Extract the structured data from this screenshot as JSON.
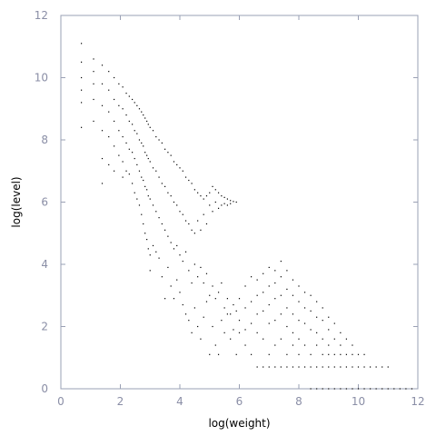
{
  "chart_data": {
    "type": "scatter",
    "title": "",
    "xlabel": "log(weight)",
    "ylabel": "log(level)",
    "xlim": [
      0,
      12
    ],
    "ylim": [
      0,
      12
    ],
    "xticks": [
      "0",
      "2",
      "4",
      "6",
      "8",
      "10",
      "12"
    ],
    "yticks": [
      "0",
      "2",
      "4",
      "6",
      "8",
      "10",
      "12"
    ],
    "grid": false,
    "legend": "none",
    "marker_color": "#000000",
    "axis_color": "#9aa0b4",
    "tick_label_color": "#8a8ea6",
    "series": [
      {
        "values_note_free": true,
        "points": [
          [
            0.69,
            11.1
          ],
          [
            0.69,
            10.5
          ],
          [
            0.69,
            10.0
          ],
          [
            0.69,
            9.6
          ],
          [
            0.69,
            9.2
          ],
          [
            0.69,
            8.4
          ],
          [
            1.1,
            10.6
          ],
          [
            1.1,
            10.2
          ],
          [
            1.1,
            9.8
          ],
          [
            1.1,
            9.3
          ],
          [
            1.1,
            8.6
          ],
          [
            1.39,
            10.4
          ],
          [
            1.39,
            9.8
          ],
          [
            1.39,
            9.1
          ],
          [
            1.39,
            8.3
          ],
          [
            1.39,
            7.4
          ],
          [
            1.39,
            6.6
          ],
          [
            1.61,
            10.2
          ],
          [
            1.61,
            9.6
          ],
          [
            1.61,
            8.9
          ],
          [
            1.61,
            8.1
          ],
          [
            1.61,
            7.2
          ],
          [
            1.79,
            10.0
          ],
          [
            1.79,
            9.3
          ],
          [
            1.79,
            8.6
          ],
          [
            1.79,
            7.8
          ],
          [
            1.79,
            7.0
          ],
          [
            1.95,
            9.8
          ],
          [
            1.95,
            9.1
          ],
          [
            1.95,
            8.3
          ],
          [
            1.95,
            7.5
          ],
          [
            2.08,
            9.7
          ],
          [
            2.08,
            9.0
          ],
          [
            2.08,
            8.1
          ],
          [
            2.08,
            7.3
          ],
          [
            2.08,
            6.8
          ],
          [
            2.2,
            9.5
          ],
          [
            2.2,
            8.8
          ],
          [
            2.2,
            7.9
          ],
          [
            2.2,
            7.0
          ],
          [
            2.3,
            9.4
          ],
          [
            2.3,
            8.6
          ],
          [
            2.3,
            7.7
          ],
          [
            2.3,
            6.9
          ],
          [
            2.4,
            9.3
          ],
          [
            2.4,
            8.5
          ],
          [
            2.4,
            7.6
          ],
          [
            2.4,
            6.6
          ],
          [
            2.48,
            9.2
          ],
          [
            2.48,
            8.3
          ],
          [
            2.48,
            7.4
          ],
          [
            2.48,
            6.3
          ],
          [
            2.56,
            9.1
          ],
          [
            2.56,
            8.2
          ],
          [
            2.56,
            7.2
          ],
          [
            2.56,
            6.1
          ],
          [
            2.64,
            9.0
          ],
          [
            2.64,
            8.0
          ],
          [
            2.64,
            7.0
          ],
          [
            2.64,
            5.9
          ],
          [
            2.71,
            8.9
          ],
          [
            2.71,
            7.9
          ],
          [
            2.71,
            6.8
          ],
          [
            2.71,
            5.6
          ],
          [
            2.77,
            8.8
          ],
          [
            2.77,
            7.8
          ],
          [
            2.77,
            6.7
          ],
          [
            2.77,
            5.3
          ],
          [
            2.83,
            8.7
          ],
          [
            2.83,
            7.6
          ],
          [
            2.83,
            6.5
          ],
          [
            2.83,
            5.0
          ],
          [
            2.89,
            8.6
          ],
          [
            2.89,
            7.5
          ],
          [
            2.89,
            6.4
          ],
          [
            2.89,
            4.8
          ],
          [
            2.94,
            8.5
          ],
          [
            2.94,
            7.4
          ],
          [
            2.94,
            6.2
          ],
          [
            2.94,
            4.5
          ],
          [
            3.0,
            8.4
          ],
          [
            3.0,
            7.3
          ],
          [
            3.0,
            6.1
          ],
          [
            3.0,
            4.3
          ],
          [
            3.0,
            3.8
          ],
          [
            3.1,
            8.3
          ],
          [
            3.1,
            7.1
          ],
          [
            3.1,
            5.9
          ],
          [
            3.1,
            4.6
          ],
          [
            3.2,
            8.1
          ],
          [
            3.2,
            7.0
          ],
          [
            3.2,
            5.7
          ],
          [
            3.2,
            4.4
          ],
          [
            3.3,
            8.0
          ],
          [
            3.3,
            6.8
          ],
          [
            3.3,
            5.5
          ],
          [
            3.3,
            4.2
          ],
          [
            3.4,
            7.9
          ],
          [
            3.4,
            6.6
          ],
          [
            3.4,
            5.3
          ],
          [
            3.4,
            3.6
          ],
          [
            3.5,
            7.7
          ],
          [
            3.5,
            6.5
          ],
          [
            3.5,
            5.1
          ],
          [
            3.5,
            2.9
          ],
          [
            3.6,
            7.6
          ],
          [
            3.6,
            6.3
          ],
          [
            3.6,
            4.9
          ],
          [
            3.6,
            3.9
          ],
          [
            3.7,
            7.5
          ],
          [
            3.7,
            6.2
          ],
          [
            3.7,
            4.7
          ],
          [
            3.7,
            3.3
          ],
          [
            3.8,
            7.3
          ],
          [
            3.8,
            6.0
          ],
          [
            3.8,
            4.5
          ],
          [
            3.8,
            2.9
          ],
          [
            3.9,
            7.2
          ],
          [
            3.9,
            5.9
          ],
          [
            3.9,
            4.6
          ],
          [
            3.9,
            3.5
          ],
          [
            4.0,
            7.1
          ],
          [
            4.0,
            5.7
          ],
          [
            4.0,
            4.3
          ],
          [
            4.0,
            3.1
          ],
          [
            4.1,
            7.0
          ],
          [
            4.1,
            5.6
          ],
          [
            4.1,
            4.1
          ],
          [
            4.1,
            2.7
          ],
          [
            4.2,
            6.8
          ],
          [
            4.2,
            5.4
          ],
          [
            4.2,
            4.4
          ],
          [
            4.2,
            2.4
          ],
          [
            4.3,
            6.7
          ],
          [
            4.3,
            5.3
          ],
          [
            4.3,
            3.8
          ],
          [
            4.3,
            2.2
          ],
          [
            4.4,
            6.6
          ],
          [
            4.4,
            5.1
          ],
          [
            4.4,
            3.4
          ],
          [
            4.4,
            1.8
          ],
          [
            4.5,
            6.4
          ],
          [
            4.5,
            5.0
          ],
          [
            4.5,
            4.0
          ],
          [
            4.5,
            2.6
          ],
          [
            4.6,
            6.3
          ],
          [
            4.6,
            5.4
          ],
          [
            4.6,
            3.6
          ],
          [
            4.6,
            2.0
          ],
          [
            4.7,
            6.2
          ],
          [
            4.7,
            5.1
          ],
          [
            4.7,
            3.9
          ],
          [
            4.7,
            1.6
          ],
          [
            4.8,
            6.1
          ],
          [
            4.8,
            5.6
          ],
          [
            4.8,
            3.4
          ],
          [
            4.8,
            2.3
          ],
          [
            4.9,
            6.2
          ],
          [
            4.9,
            5.3
          ],
          [
            4.9,
            3.7
          ],
          [
            4.9,
            2.8
          ],
          [
            5.0,
            6.3
          ],
          [
            5.0,
            5.9
          ],
          [
            5.0,
            3.0
          ],
          [
            5.0,
            1.1
          ],
          [
            5.1,
            6.5
          ],
          [
            5.1,
            5.7
          ],
          [
            5.1,
            3.3
          ],
          [
            5.1,
            2.0
          ],
          [
            5.2,
            6.4
          ],
          [
            5.2,
            6.0
          ],
          [
            5.2,
            2.9
          ],
          [
            5.2,
            1.4
          ],
          [
            5.3,
            6.3
          ],
          [
            5.3,
            5.8
          ],
          [
            5.3,
            3.1
          ],
          [
            5.3,
            1.1
          ],
          [
            5.4,
            6.2
          ],
          [
            5.4,
            5.9
          ],
          [
            5.4,
            3.4
          ],
          [
            5.4,
            2.2
          ],
          [
            5.5,
            6.15
          ],
          [
            5.5,
            5.95
          ],
          [
            5.5,
            2.6
          ],
          [
            5.5,
            1.8
          ],
          [
            5.6,
            6.1
          ],
          [
            5.6,
            5.9
          ],
          [
            5.6,
            2.9
          ],
          [
            5.6,
            2.4
          ],
          [
            5.7,
            6.05
          ],
          [
            5.7,
            5.95
          ],
          [
            5.7,
            2.4
          ],
          [
            5.7,
            1.6
          ],
          [
            5.8,
            6.02
          ],
          [
            5.8,
            2.7
          ],
          [
            5.8,
            1.9
          ],
          [
            5.9,
            6.0
          ],
          [
            5.9,
            2.5
          ],
          [
            5.9,
            1.1
          ],
          [
            6.0,
            2.9
          ],
          [
            6.0,
            2.2
          ],
          [
            6.0,
            1.8
          ],
          [
            6.2,
            3.3
          ],
          [
            6.2,
            2.6
          ],
          [
            6.2,
            1.9
          ],
          [
            6.2,
            1.4
          ],
          [
            6.4,
            3.6
          ],
          [
            6.4,
            2.8
          ],
          [
            6.4,
            2.1
          ],
          [
            6.4,
            1.1
          ],
          [
            6.6,
            3.5
          ],
          [
            6.6,
            3.0
          ],
          [
            6.6,
            2.4
          ],
          [
            6.6,
            1.8
          ],
          [
            6.6,
            0.7
          ],
          [
            6.8,
            3.7
          ],
          [
            6.8,
            3.1
          ],
          [
            6.8,
            2.5
          ],
          [
            6.8,
            1.6
          ],
          [
            6.8,
            0.7
          ],
          [
            7.0,
            3.9
          ],
          [
            7.0,
            3.3
          ],
          [
            7.0,
            2.7
          ],
          [
            7.0,
            2.1
          ],
          [
            7.0,
            1.1
          ],
          [
            7.0,
            0.7
          ],
          [
            7.2,
            3.8
          ],
          [
            7.2,
            3.4
          ],
          [
            7.2,
            2.9
          ],
          [
            7.2,
            2.2
          ],
          [
            7.2,
            1.4
          ],
          [
            7.2,
            0.7
          ],
          [
            7.4,
            4.1
          ],
          [
            7.4,
            3.6
          ],
          [
            7.4,
            3.0
          ],
          [
            7.4,
            2.4
          ],
          [
            7.4,
            1.6
          ],
          [
            7.4,
            0.7
          ],
          [
            7.6,
            3.8
          ],
          [
            7.6,
            3.2
          ],
          [
            7.6,
            2.6
          ],
          [
            7.6,
            2.0
          ],
          [
            7.6,
            1.1
          ],
          [
            7.6,
            0.7
          ],
          [
            7.8,
            3.5
          ],
          [
            7.8,
            3.0
          ],
          [
            7.8,
            2.4
          ],
          [
            7.8,
            1.8
          ],
          [
            7.8,
            1.4
          ],
          [
            7.8,
            0.7
          ],
          [
            8.0,
            3.3
          ],
          [
            8.0,
            2.8
          ],
          [
            8.0,
            2.2
          ],
          [
            8.0,
            1.6
          ],
          [
            8.0,
            1.1
          ],
          [
            8.0,
            0.7
          ],
          [
            8.2,
            3.1
          ],
          [
            8.2,
            2.6
          ],
          [
            8.2,
            2.1
          ],
          [
            8.2,
            1.4
          ],
          [
            8.2,
            0.7
          ],
          [
            8.4,
            3.0
          ],
          [
            8.4,
            2.5
          ],
          [
            8.4,
            1.9
          ],
          [
            8.4,
            1.1
          ],
          [
            8.4,
            0.7
          ],
          [
            8.4,
            0.0
          ],
          [
            8.6,
            2.8
          ],
          [
            8.6,
            2.3
          ],
          [
            8.6,
            1.8
          ],
          [
            8.6,
            1.4
          ],
          [
            8.6,
            0.7
          ],
          [
            8.6,
            0.0
          ],
          [
            8.8,
            2.6
          ],
          [
            8.8,
            2.2
          ],
          [
            8.8,
            1.6
          ],
          [
            8.8,
            1.1
          ],
          [
            8.8,
            0.7
          ],
          [
            8.8,
            0.0
          ],
          [
            9.0,
            2.3
          ],
          [
            9.0,
            1.9
          ],
          [
            9.0,
            1.4
          ],
          [
            9.0,
            1.1
          ],
          [
            9.0,
            0.7
          ],
          [
            9.0,
            0.0
          ],
          [
            9.2,
            2.1
          ],
          [
            9.2,
            1.6
          ],
          [
            9.2,
            1.1
          ],
          [
            9.2,
            0.7
          ],
          [
            9.2,
            0.0
          ],
          [
            9.4,
            1.8
          ],
          [
            9.4,
            1.4
          ],
          [
            9.4,
            1.1
          ],
          [
            9.4,
            0.7
          ],
          [
            9.4,
            0.0
          ],
          [
            9.6,
            1.6
          ],
          [
            9.6,
            1.1
          ],
          [
            9.6,
            0.7
          ],
          [
            9.6,
            0.0
          ],
          [
            9.8,
            1.4
          ],
          [
            9.8,
            1.1
          ],
          [
            9.8,
            0.7
          ],
          [
            9.8,
            0.0
          ],
          [
            10.0,
            1.1
          ],
          [
            10.0,
            0.7
          ],
          [
            10.0,
            0.0
          ],
          [
            10.2,
            1.1
          ],
          [
            10.2,
            0.7
          ],
          [
            10.2,
            0.0
          ],
          [
            10.4,
            0.7
          ],
          [
            10.4,
            0.0
          ],
          [
            10.6,
            0.7
          ],
          [
            10.6,
            0.0
          ],
          [
            10.8,
            0.7
          ],
          [
            10.8,
            0.0
          ],
          [
            11.0,
            0.7
          ],
          [
            11.0,
            0.0
          ],
          [
            11.2,
            0.0
          ],
          [
            11.4,
            0.0
          ],
          [
            11.6,
            0.0
          ],
          [
            11.8,
            0.0
          ]
        ]
      }
    ]
  }
}
